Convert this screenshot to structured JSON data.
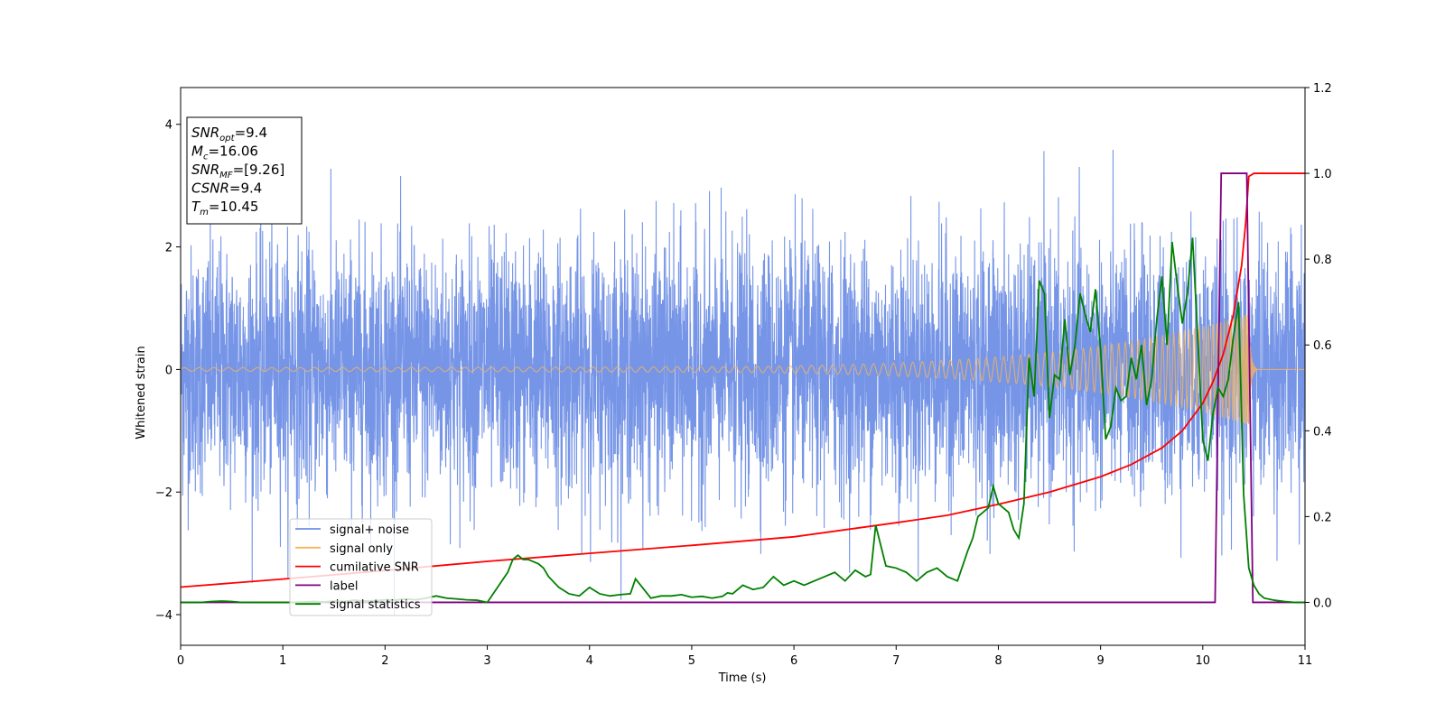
{
  "chart_data": {
    "type": "line",
    "title": "",
    "xlabel": "Time (s)",
    "ylabel": "Whitened strain",
    "xlim": [
      0,
      11
    ],
    "ylim": [
      -4.5,
      4.6
    ],
    "y2lim": [
      -0.1,
      1.2
    ],
    "x_ticks": [
      "0",
      "1",
      "2",
      "3",
      "4",
      "5",
      "6",
      "7",
      "8",
      "9",
      "10",
      "11"
    ],
    "y_ticks": [
      "4",
      "2",
      "0",
      "−2",
      "−4"
    ],
    "y2_ticks": [
      "1.2",
      "1.0",
      "0.8",
      "0.6",
      "0.4",
      "0.2",
      "0.0"
    ],
    "grid": false,
    "legend_position": "lower-left",
    "info_box": {
      "lines": [
        {
          "main": "SNR",
          "sub": "opt",
          "rest": "=9.4"
        },
        {
          "main": "M",
          "sub": "c",
          "rest": "=16.06"
        },
        {
          "main": "SNR",
          "sub": "MF",
          "rest": "=[9.26]"
        },
        {
          "main": "CSNR",
          "sub": "",
          "rest": "=9.4"
        },
        {
          "main": "T",
          "sub": "m",
          "rest": "=10.45"
        }
      ]
    },
    "series": [
      {
        "name": "signal+ noise",
        "axis": "left",
        "color": "#6f8fe6",
        "style": "noise",
        "amplitude": 1.0,
        "peak_max": 4.17,
        "peak_min": -4.1
      },
      {
        "name": "signal only",
        "axis": "left",
        "color": "#f5b45a",
        "style": "chirp",
        "amplitude_start": 0.03,
        "amplitude_end": 0.9,
        "merger_time": 10.45
      },
      {
        "name": "cumilative SNR",
        "axis": "left",
        "color": "#ff0000",
        "x": [
          0,
          1,
          2,
          3,
          4,
          5,
          6,
          7,
          7.5,
          8,
          8.5,
          9,
          9.3,
          9.6,
          9.8,
          10,
          10.1,
          10.2,
          10.3,
          10.38,
          10.42,
          10.45,
          10.5,
          11
        ],
        "y": [
          -3.55,
          -3.42,
          -3.28,
          -3.13,
          -3.0,
          -2.87,
          -2.73,
          -2.5,
          -2.38,
          -2.2,
          -2.0,
          -1.75,
          -1.55,
          -1.28,
          -1.0,
          -0.55,
          -0.2,
          0.25,
          0.9,
          1.7,
          2.4,
          3.15,
          3.2,
          3.2
        ]
      },
      {
        "name": "label",
        "axis": "right",
        "color": "#800080",
        "x": [
          0,
          10.12,
          10.18,
          10.43,
          10.49,
          11
        ],
        "y": [
          0,
          0,
          1,
          1,
          0,
          0
        ]
      },
      {
        "name": "signal statistics",
        "axis": "right",
        "color": "#008000",
        "x": [
          0,
          0.1,
          0.2,
          0.3,
          0.4,
          0.5,
          0.6,
          0.7,
          0.8,
          0.9,
          1.0,
          1.1,
          1.2,
          1.3,
          1.4,
          1.5,
          1.6,
          1.7,
          1.8,
          1.9,
          2.0,
          2.1,
          2.2,
          2.3,
          2.4,
          2.5,
          2.6,
          2.7,
          2.8,
          2.9,
          3.0,
          3.1,
          3.2,
          3.25,
          3.3,
          3.35,
          3.4,
          3.45,
          3.5,
          3.55,
          3.6,
          3.7,
          3.8,
          3.9,
          4.0,
          4.1,
          4.2,
          4.3,
          4.4,
          4.45,
          4.5,
          4.6,
          4.7,
          4.8,
          4.9,
          5.0,
          5.1,
          5.2,
          5.3,
          5.35,
          5.4,
          5.5,
          5.6,
          5.7,
          5.8,
          5.9,
          6.0,
          6.1,
          6.2,
          6.3,
          6.4,
          6.5,
          6.6,
          6.7,
          6.75,
          6.8,
          6.9,
          7.0,
          7.1,
          7.2,
          7.3,
          7.4,
          7.5,
          7.6,
          7.7,
          7.75,
          7.8,
          7.9,
          7.95,
          8.0,
          8.05,
          8.1,
          8.15,
          8.2,
          8.25,
          8.3,
          8.35,
          8.4,
          8.45,
          8.5,
          8.55,
          8.6,
          8.65,
          8.7,
          8.75,
          8.8,
          8.85,
          8.9,
          8.95,
          9.0,
          9.05,
          9.1,
          9.15,
          9.2,
          9.25,
          9.3,
          9.35,
          9.4,
          9.45,
          9.5,
          9.55,
          9.6,
          9.65,
          9.7,
          9.75,
          9.8,
          9.85,
          9.9,
          9.95,
          10.0,
          10.05,
          10.1,
          10.15,
          10.2,
          10.25,
          10.3,
          10.35,
          10.4,
          10.45,
          10.5,
          10.55,
          10.6,
          10.7,
          10.8,
          10.9,
          11.0
        ],
        "y": [
          0.0,
          0.0,
          0.0,
          0.002,
          0.003,
          0.002,
          0.0,
          0.0,
          0.0,
          0.0,
          0.0,
          0.0,
          0.001,
          0.002,
          0.001,
          0.003,
          0.002,
          0.005,
          0.003,
          0.004,
          0.006,
          0.005,
          0.008,
          0.006,
          0.01,
          0.015,
          0.01,
          0.008,
          0.006,
          0.005,
          0.0,
          0.035,
          0.07,
          0.1,
          0.11,
          0.1,
          0.1,
          0.095,
          0.09,
          0.08,
          0.06,
          0.035,
          0.02,
          0.015,
          0.035,
          0.02,
          0.015,
          0.018,
          0.02,
          0.055,
          0.04,
          0.01,
          0.015,
          0.015,
          0.018,
          0.012,
          0.014,
          0.01,
          0.014,
          0.022,
          0.02,
          0.04,
          0.03,
          0.035,
          0.06,
          0.04,
          0.05,
          0.04,
          0.05,
          0.06,
          0.07,
          0.05,
          0.075,
          0.06,
          0.065,
          0.18,
          0.085,
          0.08,
          0.07,
          0.05,
          0.07,
          0.08,
          0.06,
          0.05,
          0.12,
          0.15,
          0.2,
          0.22,
          0.27,
          0.23,
          0.22,
          0.21,
          0.17,
          0.15,
          0.23,
          0.57,
          0.48,
          0.75,
          0.72,
          0.43,
          0.53,
          0.52,
          0.66,
          0.53,
          0.6,
          0.72,
          0.67,
          0.63,
          0.73,
          0.59,
          0.38,
          0.41,
          0.5,
          0.47,
          0.48,
          0.57,
          0.52,
          0.6,
          0.46,
          0.52,
          0.66,
          0.76,
          0.6,
          0.84,
          0.74,
          0.65,
          0.72,
          0.85,
          0.62,
          0.38,
          0.33,
          0.44,
          0.5,
          0.48,
          0.52,
          0.62,
          0.7,
          0.25,
          0.08,
          0.04,
          0.02,
          0.01,
          0.005,
          0.002,
          0.0,
          0.0
        ]
      }
    ]
  }
}
